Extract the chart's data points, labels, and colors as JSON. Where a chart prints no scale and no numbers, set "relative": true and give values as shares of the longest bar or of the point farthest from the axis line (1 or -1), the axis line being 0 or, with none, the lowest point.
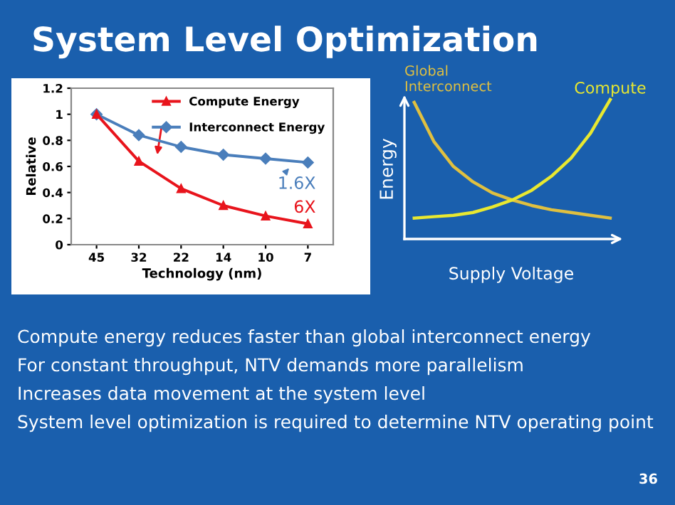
{
  "chart_data": [
    {
      "type": "line",
      "title": "System Level Optimization",
      "xlabel": "Technology (nm)",
      "ylabel": "Relative",
      "categories": [
        "45",
        "32",
        "22",
        "14",
        "10",
        "7"
      ],
      "series": [
        {
          "name": "Compute Energy",
          "color": "#e8141c",
          "marker": "triangle",
          "values": [
            1,
            0.64,
            0.43,
            0.3,
            0.22,
            0.16
          ]
        },
        {
          "name": "Interconnect Energy",
          "color": "#4a7ebb",
          "marker": "diamond",
          "values": [
            1,
            0.84,
            0.75,
            0.69,
            0.66,
            0.63
          ]
        }
      ],
      "ylim": [
        0,
        1.2
      ],
      "yticks": [
        0,
        0.2,
        0.4,
        0.6,
        0.8,
        1,
        1.2
      ],
      "legend": "top right",
      "line_style": "solid",
      "annotations": [
        "1.6X",
        "6X",
        "Compute energy reduces faster than global interconnect energy",
        "For constant throughput, NTV demands more parallelism",
        "Increases data movement at the system level",
        "System level optimization is required to determine NTV operating point",
        "36"
      ]
    },
    {
      "type": "line",
      "relative": true,
      "xlabel": "Supply Voltage",
      "ylabel": "Energy",
      "categories": [
        null,
        null,
        null,
        null,
        null,
        null,
        null,
        null,
        null,
        null,
        null
      ],
      "series": [
        {
          "name": "Global\nInterconnect",
          "color": "#e0c040",
          "values": [
            0.98,
            0.7,
            0.52,
            0.41,
            0.33,
            0.28,
            0.24,
            0.21,
            0.19,
            0.17,
            0.15
          ]
        },
        {
          "name": "Compute",
          "color": "#e8e830",
          "values": [
            0.15,
            0.16,
            0.17,
            0.19,
            0.23,
            0.28,
            0.35,
            0.45,
            0.58,
            0.76,
            1.0
          ]
        }
      ],
      "marker": "none",
      "line_style": "solid"
    }
  ]
}
